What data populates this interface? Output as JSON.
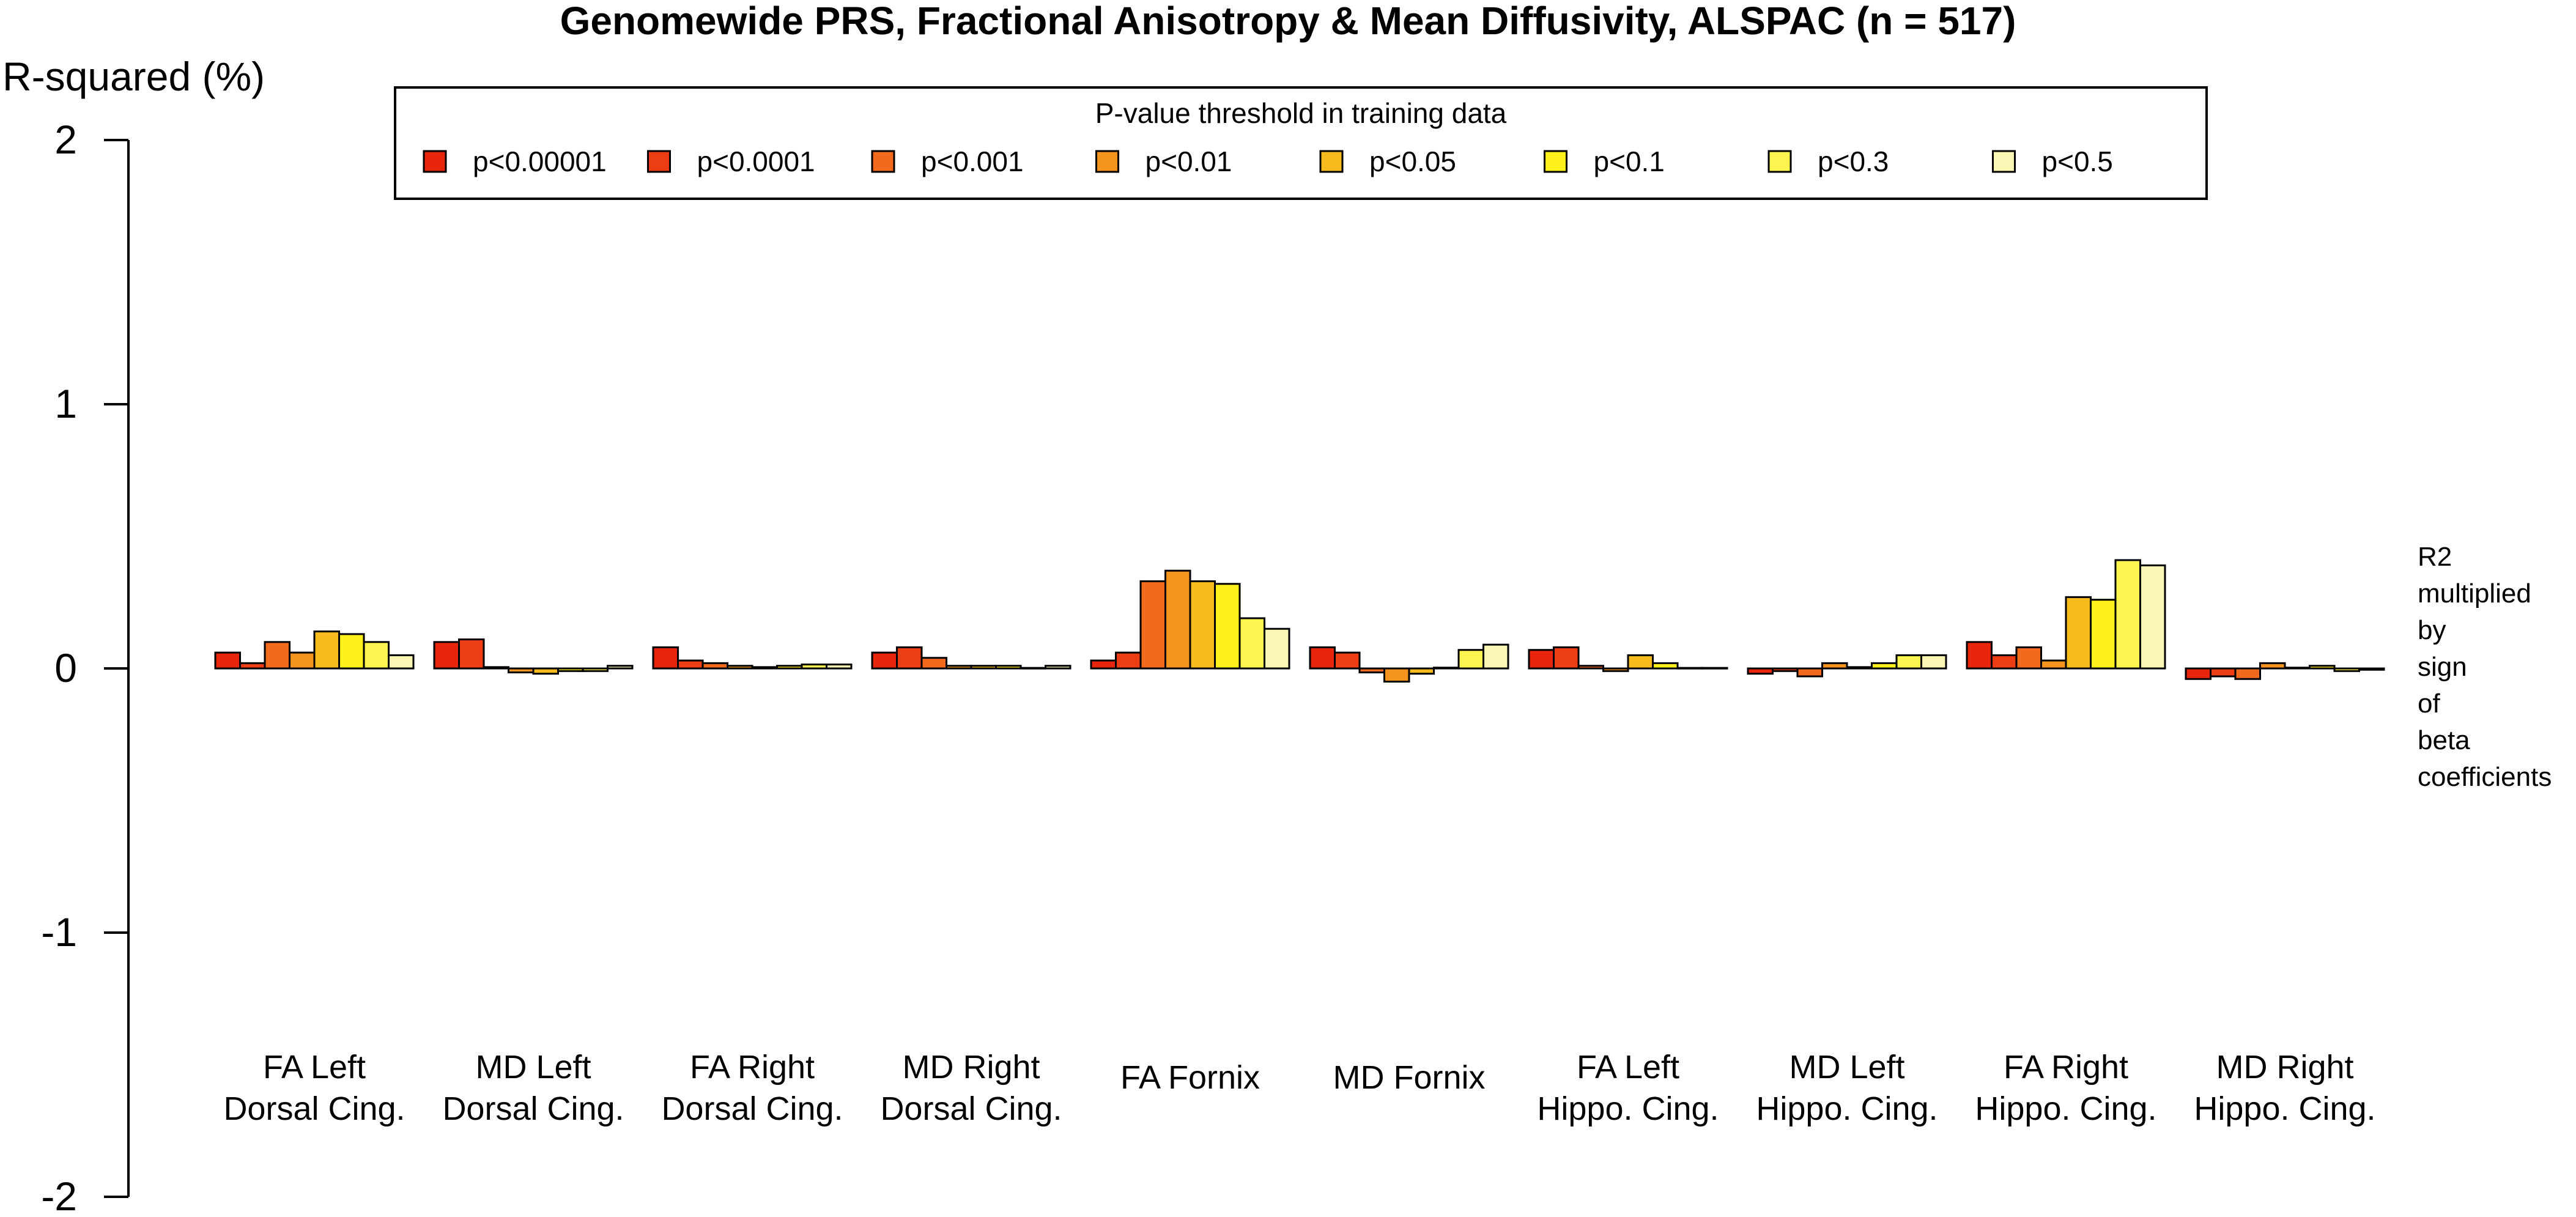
{
  "chart_data": {
    "type": "bar",
    "title": "Genomewide PRS, Fractional Anisotropy & Mean Diffusivity, ALSPAC (n = 517)",
    "ylabel": "R-squared (%)",
    "xlabel": "",
    "ylim": [
      -2,
      2
    ],
    "yticks": [
      "-2",
      "-1",
      "0",
      "1",
      "2"
    ],
    "grid": false,
    "categories": [
      [
        "FA Left",
        "Dorsal Cing."
      ],
      [
        "MD Left",
        "Dorsal Cing."
      ],
      [
        "FA Right",
        "Dorsal Cing."
      ],
      [
        "MD Right",
        "Dorsal Cing."
      ],
      [
        "FA Fornix"
      ],
      [
        "MD Fornix"
      ],
      [
        "FA Left",
        "Hippo. Cing."
      ],
      [
        "MD Left",
        "Hippo. Cing."
      ],
      [
        "FA Right",
        "Hippo. Cing."
      ],
      [
        "MD Right",
        "Hippo. Cing."
      ]
    ],
    "legend": {
      "title": "P-value threshold in training data",
      "placement": "top-center"
    },
    "series": [
      {
        "name": "p<0.00001",
        "color": "#E8260E",
        "values": [
          0.06,
          0.1,
          0.08,
          0.06,
          0.03,
          0.08,
          0.07,
          -0.02,
          0.1,
          -0.04
        ]
      },
      {
        "name": "p<0.0001",
        "color": "#EC3D14",
        "values": [
          0.02,
          0.11,
          0.03,
          0.08,
          0.06,
          0.06,
          0.08,
          -0.01,
          0.05,
          -0.03
        ]
      },
      {
        "name": "p<0.001",
        "color": "#F26A1E",
        "values": [
          0.1,
          0.005,
          0.02,
          0.04,
          0.33,
          -0.015,
          0.01,
          -0.03,
          0.08,
          -0.04
        ]
      },
      {
        "name": "p<0.01",
        "color": "#F4941E",
        "values": [
          0.06,
          -0.015,
          0.01,
          0.01,
          0.37,
          -0.05,
          -0.01,
          0.02,
          0.03,
          0.02
        ]
      },
      {
        "name": "p<0.05",
        "color": "#F7BB1E",
        "values": [
          0.14,
          -0.02,
          0.005,
          0.01,
          0.33,
          -0.02,
          0.05,
          0.005,
          0.27,
          0.003
        ]
      },
      {
        "name": "p<0.1",
        "color": "#FDF01C",
        "values": [
          0.13,
          -0.01,
          0.01,
          0.01,
          0.32,
          0.003,
          0.02,
          0.02,
          0.26,
          0.01
        ]
      },
      {
        "name": "p<0.3",
        "color": "#FCF44F",
        "values": [
          0.1,
          -0.01,
          0.015,
          0.002,
          0.19,
          0.07,
          0.002,
          0.05,
          0.41,
          -0.01
        ]
      },
      {
        "name": "p<0.5",
        "color": "#FBF6B4",
        "values": [
          0.05,
          0.01,
          0.015,
          0.01,
          0.15,
          0.09,
          0.002,
          0.05,
          0.39,
          -0.005
        ]
      }
    ],
    "side_note": [
      "R2",
      "multiplied",
      "by",
      "sign",
      "of",
      "beta",
      "coefficients"
    ]
  }
}
